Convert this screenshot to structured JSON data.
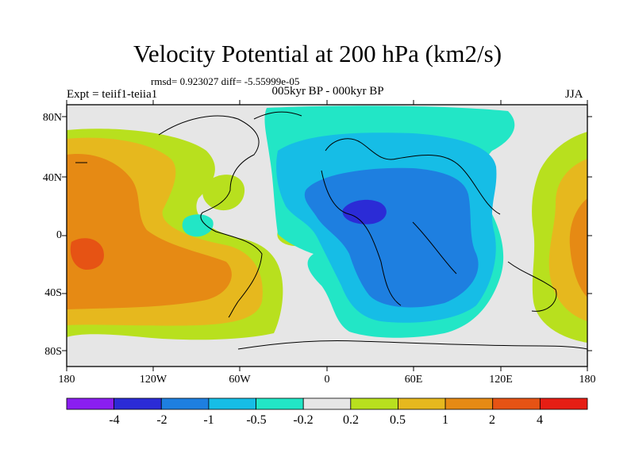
{
  "title": "Velocity Potential at 200 hPa (km2/s)",
  "stats": "rmsd= 0.923027 diff= -5.55999e-05",
  "experiment": "Expt = teiif1-teiia1",
  "difference": "005kyr BP - 000kyr BP",
  "season": "JJA",
  "axes": {
    "lat_ticks": [
      "80N",
      "40N",
      "0",
      "40S",
      "80S"
    ],
    "lon_ticks": [
      "180",
      "120W",
      "60W",
      "0",
      "60E",
      "120E",
      "180"
    ]
  },
  "colorbar": {
    "labels": [
      "-4",
      "-2",
      "-1",
      "-0.5",
      "-0.2",
      "0.2",
      "0.5",
      "1",
      "2",
      "4"
    ],
    "colors": [
      "#8a1ef0",
      "#2b2bd6",
      "#1e7fe0",
      "#16bde6",
      "#22e6c6",
      "#e6e6e6",
      "#b8e01e",
      "#e6b81e",
      "#e68a14",
      "#e65314",
      "#e61e14"
    ]
  }
}
